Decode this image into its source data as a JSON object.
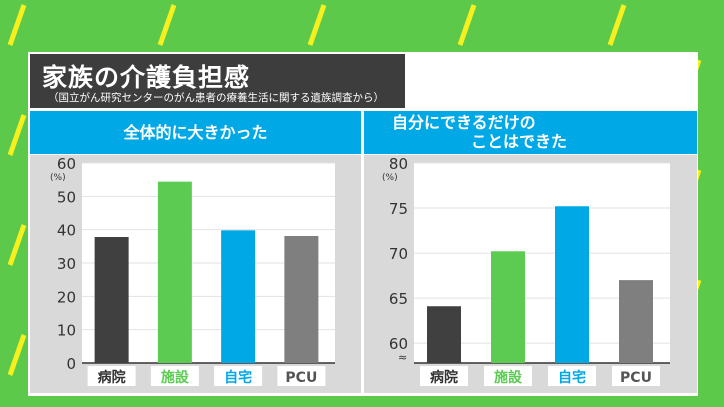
{
  "header": {
    "title": "家族の介護負担感",
    "subtitle": "（国立がん研究センターのがん患者の療養生活に関する遺族調査から）"
  },
  "colors": {
    "background": "#5cc94b",
    "stripe": "#f5f01e",
    "header_blue": "#00a8e6",
    "bar_hospital": "#404040",
    "bar_facility": "#5ccb52",
    "bar_home": "#00a8e6",
    "bar_pcu": "#7f7f7f"
  },
  "chart_data": [
    {
      "type": "bar",
      "title": "全体的に大きかった",
      "categories": [
        "病院",
        "施設",
        "自宅",
        "PCU"
      ],
      "values": [
        37.8,
        54.4,
        39.8,
        38.1
      ],
      "unit": "(%)",
      "ylim": [
        0,
        60
      ],
      "yticks": [
        "0",
        "10",
        "20",
        "30",
        "40",
        "50",
        "60"
      ],
      "grid": true
    },
    {
      "type": "bar",
      "title_lines": [
        "自分にできるだけの",
        "ことはできた"
      ],
      "categories": [
        "病院",
        "施設",
        "自宅",
        "PCU"
      ],
      "values": [
        64.1,
        70.2,
        75.2,
        67.0
      ],
      "unit": "(%)",
      "ylim": [
        57.8,
        80
      ],
      "yticks": [
        "60",
        "65",
        "70",
        "75",
        "80"
      ],
      "axis_break": "≈",
      "grid": true
    }
  ]
}
